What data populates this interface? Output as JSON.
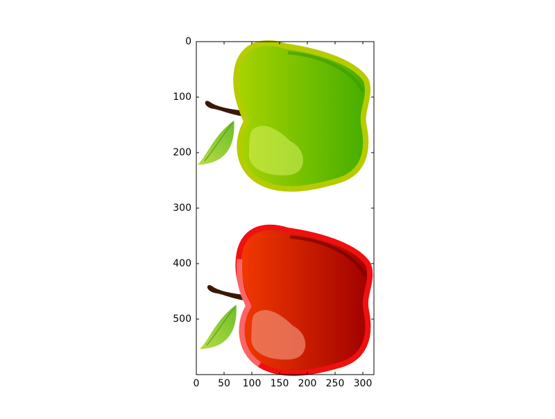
{
  "chart_data": {
    "type": "image",
    "xlim": [
      0,
      320
    ],
    "ylim": [
      600,
      0
    ],
    "xticks": [
      0,
      50,
      100,
      150,
      200,
      250,
      300
    ],
    "yticks": [
      0,
      100,
      200,
      300,
      400,
      500
    ]
  }
}
